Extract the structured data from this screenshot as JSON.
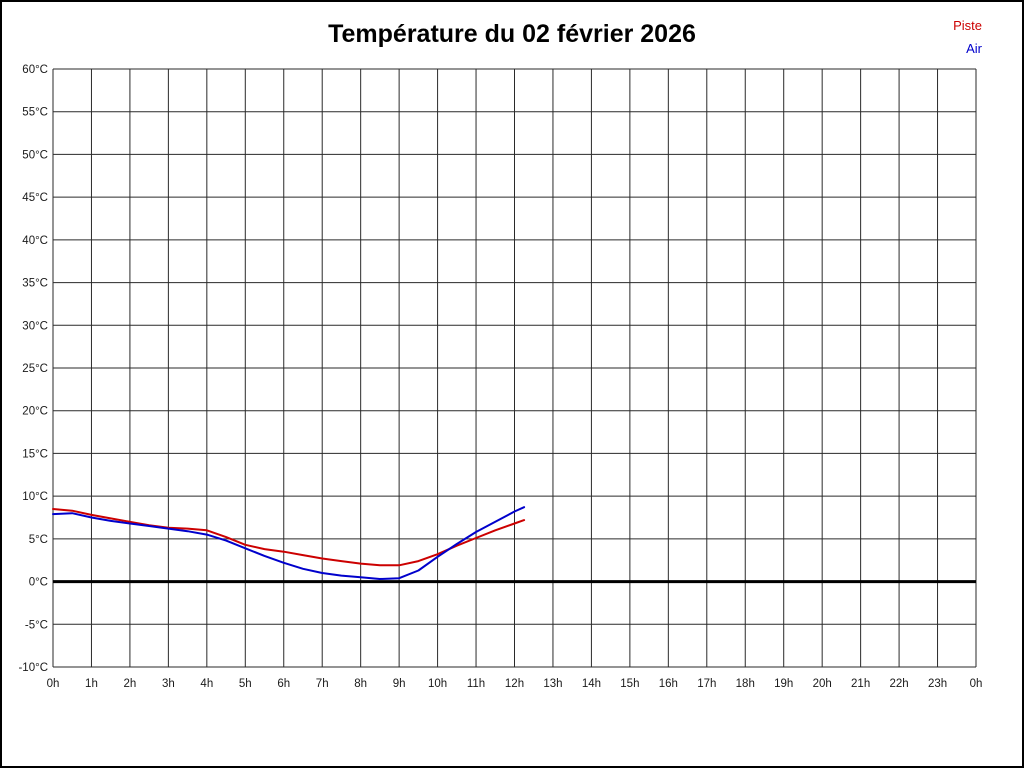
{
  "page": {
    "title": "Température du 02 février 2026"
  },
  "legend": [
    {
      "label": "Piste",
      "color": "#cc0000"
    },
    {
      "label": "Air",
      "color": "#0000cc"
    }
  ],
  "chart_data": {
    "type": "line",
    "title": "Température du 02 février 2026",
    "xlabel": "heure",
    "ylabel": "°C",
    "xlim": [
      0,
      24
    ],
    "ylim": [
      -10,
      60
    ],
    "x_step": 1,
    "y_step": 5,
    "grid": true,
    "x_tick_suffix": "h",
    "y_tick_suffix": "°C",
    "zero_line": {
      "value": 0,
      "color": "#000000",
      "width": 3
    },
    "x": [
      0,
      0.5,
      1,
      1.5,
      2,
      2.5,
      3,
      3.5,
      4,
      4.5,
      5,
      5.5,
      6,
      6.5,
      7,
      7.5,
      8,
      8.5,
      9,
      9.5,
      10,
      10.5,
      11,
      11.5,
      12,
      12.25
    ],
    "series": [
      {
        "name": "Piste",
        "color": "#cc0000",
        "values": [
          8.5,
          8.3,
          7.8,
          7.4,
          7.0,
          6.6,
          6.3,
          6.2,
          6.0,
          5.2,
          4.3,
          3.8,
          3.5,
          3.1,
          2.7,
          2.4,
          2.1,
          1.9,
          1.9,
          2.4,
          3.2,
          4.2,
          5.1,
          6.0,
          6.8,
          7.2
        ]
      },
      {
        "name": "Air",
        "color": "#0000cc",
        "values": [
          7.9,
          8.0,
          7.5,
          7.1,
          6.8,
          6.5,
          6.2,
          5.9,
          5.5,
          4.8,
          3.9,
          3.0,
          2.2,
          1.5,
          1.0,
          0.7,
          0.5,
          0.3,
          0.4,
          1.3,
          2.9,
          4.4,
          5.8,
          7.0,
          8.2,
          8.7
        ]
      }
    ]
  }
}
